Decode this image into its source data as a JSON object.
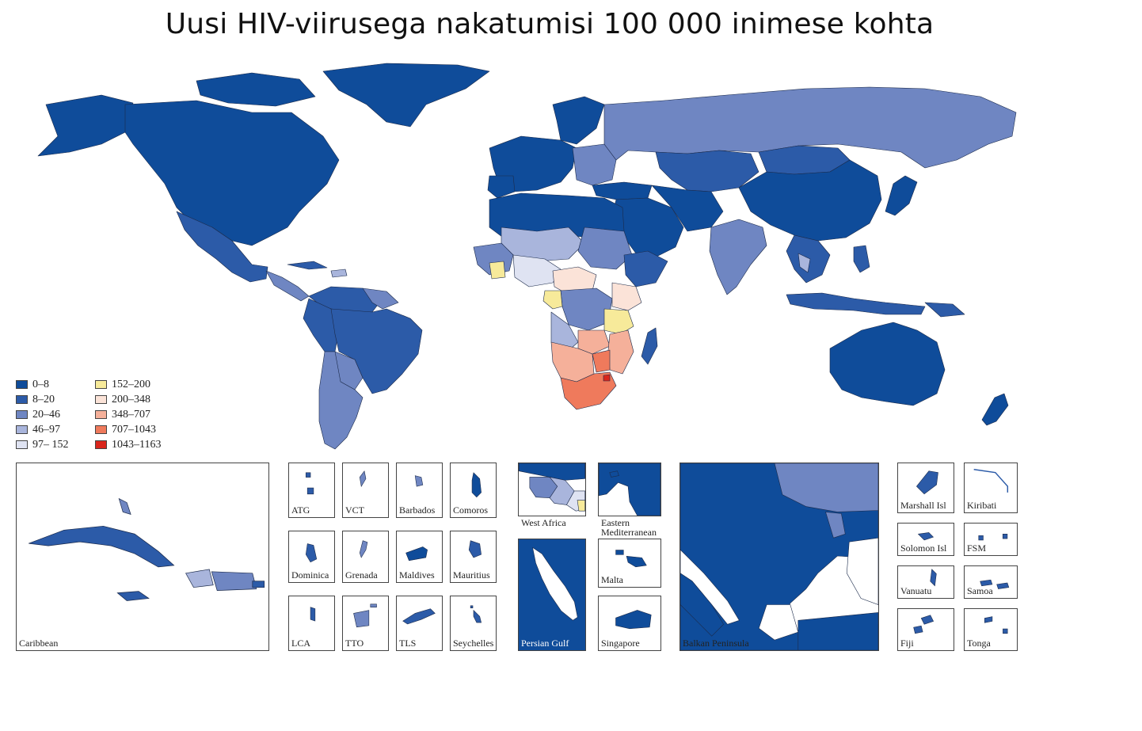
{
  "title": "Uusi HIV-viirusega nakatumisi 100 000 inimese kohta",
  "colors": {
    "c1": "#0f4c9a",
    "c2": "#2c5ba8",
    "c3": "#6f86c2",
    "c4": "#a9b5dc",
    "c5": "#dfe3f2",
    "c6": "#f7ea9a",
    "c7": "#fbe3d8",
    "c8": "#f5b09a",
    "c9": "#ef7a5c",
    "c10": "#d9261c",
    "ocean": "#ffffff",
    "border": "#1b2a4a"
  },
  "legend": [
    {
      "label": "0–8",
      "color": "#0f4c9a"
    },
    {
      "label": "8–20",
      "color": "#2c5ba8"
    },
    {
      "label": "20–46",
      "color": "#6f86c2"
    },
    {
      "label": "46–97",
      "color": "#a9b5dc"
    },
    {
      "label": "97– 152",
      "color": "#dfe3f2"
    },
    {
      "label": "152–200",
      "color": "#f7ea9a"
    },
    {
      "label": "200–348",
      "color": "#fbe3d8"
    },
    {
      "label": "348–707",
      "color": "#f5b09a"
    },
    {
      "label": "707–1043",
      "color": "#ef7a5c"
    },
    {
      "label": "1043–1163",
      "color": "#d9261c"
    }
  ],
  "insets": {
    "caribbean": "Caribbean",
    "atg": "ATG",
    "vct": "VCT",
    "barbados": "Barbados",
    "comoros": "Comoros",
    "dominica": "Dominica",
    "grenada": "Grenada",
    "maldives": "Maldives",
    "mauritius": "Mauritius",
    "lca": "LCA",
    "tto": "TTO",
    "tls": "TLS",
    "seychelles": "Seychelles",
    "west_africa": "West Africa",
    "eastern_med_1": "Eastern",
    "eastern_med_2": "Mediterranean",
    "malta": "Malta",
    "persian_gulf": "Persian Gulf",
    "singapore": "Singapore",
    "balkan": "Balkan Peninsula",
    "marshall": "Marshall Isl",
    "kiribati": "Kiribati",
    "solomon": "Solomon Isl",
    "fsm": "FSM",
    "vanuatu": "Vanuatu",
    "samoa": "Samoa",
    "fiji": "Fiji",
    "tonga": "Tonga"
  }
}
